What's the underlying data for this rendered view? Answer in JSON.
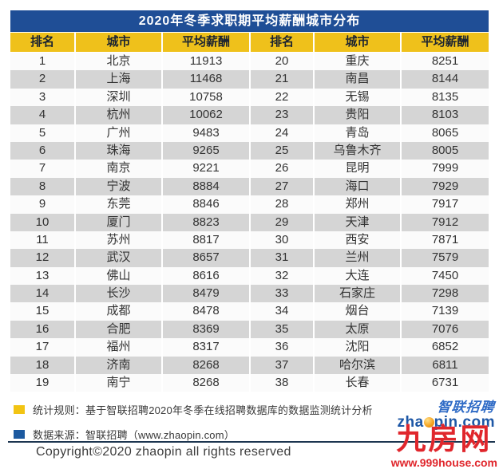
{
  "title": "2020年冬季求职期平均薪酬城市分布",
  "table": {
    "headers": [
      "排名",
      "城市",
      "平均薪酬",
      "排名",
      "城市",
      "平均薪酬"
    ],
    "rows": [
      {
        "rank": "1",
        "city": "北京",
        "salary": "11913",
        "rank2": "20",
        "city2": "重庆",
        "salary2": "8251"
      },
      {
        "rank": "2",
        "city": "上海",
        "salary": "11468",
        "rank2": "21",
        "city2": "南昌",
        "salary2": "8144"
      },
      {
        "rank": "3",
        "city": "深圳",
        "salary": "10758",
        "rank2": "22",
        "city2": "无锡",
        "salary2": "8135"
      },
      {
        "rank": "4",
        "city": "杭州",
        "salary": "10062",
        "rank2": "23",
        "city2": "贵阳",
        "salary2": "8103"
      },
      {
        "rank": "5",
        "city": "广州",
        "salary": "9483",
        "rank2": "24",
        "city2": "青岛",
        "salary2": "8065"
      },
      {
        "rank": "6",
        "city": "珠海",
        "salary": "9265",
        "rank2": "25",
        "city2": "乌鲁木齐",
        "salary2": "8005"
      },
      {
        "rank": "7",
        "city": "南京",
        "salary": "9221",
        "rank2": "26",
        "city2": "昆明",
        "salary2": "7999"
      },
      {
        "rank": "8",
        "city": "宁波",
        "salary": "8884",
        "rank2": "27",
        "city2": "海口",
        "salary2": "7929"
      },
      {
        "rank": "9",
        "city": "东莞",
        "salary": "8846",
        "rank2": "28",
        "city2": "郑州",
        "salary2": "7917"
      },
      {
        "rank": "10",
        "city": "厦门",
        "salary": "8823",
        "rank2": "29",
        "city2": "天津",
        "salary2": "7912"
      },
      {
        "rank": "11",
        "city": "苏州",
        "salary": "8817",
        "rank2": "30",
        "city2": "西安",
        "salary2": "7871"
      },
      {
        "rank": "12",
        "city": "武汉",
        "salary": "8657",
        "rank2": "31",
        "city2": "兰州",
        "salary2": "7579"
      },
      {
        "rank": "13",
        "city": "佛山",
        "salary": "8616",
        "rank2": "32",
        "city2": "大连",
        "salary2": "7450"
      },
      {
        "rank": "14",
        "city": "长沙",
        "salary": "8479",
        "rank2": "33",
        "city2": "石家庄",
        "salary2": "7298"
      },
      {
        "rank": "15",
        "city": "成都",
        "salary": "8478",
        "rank2": "34",
        "city2": "烟台",
        "salary2": "7139"
      },
      {
        "rank": "16",
        "city": "合肥",
        "salary": "8369",
        "rank2": "35",
        "city2": "太原",
        "salary2": "7076"
      },
      {
        "rank": "17",
        "city": "福州",
        "salary": "8317",
        "rank2": "36",
        "city2": "沈阳",
        "salary2": "6852"
      },
      {
        "rank": "18",
        "city": "济南",
        "salary": "8268",
        "rank2": "37",
        "city2": "哈尔滨",
        "salary2": "6811"
      },
      {
        "rank": "19",
        "city": "南宁",
        "salary": "8268",
        "rank2": "38",
        "city2": "长春",
        "salary2": "6731"
      }
    ]
  },
  "footer": {
    "legend": [
      {
        "color": "#F2C413",
        "text": "统计规则：基于智联招聘2020年冬季在线招聘数据库的数据监测统计分析"
      },
      {
        "color": "#1C5AA0",
        "text": "数据来源：智联招聘（www.zhaopin.com）"
      }
    ],
    "copyright": "Copyright©2020 zhaopin all rights reserved",
    "logo": {
      "brand": "智联招聘",
      "domain_pre": "zha",
      "domain_post": "pin.com"
    },
    "watermark": {
      "name": "九房网",
      "url": "www.999house.com"
    }
  },
  "colors": {
    "title_bar": "#1F4E96",
    "header_bg": "#EFC11B",
    "row_alt": "#D5D5D5",
    "legend_yellow": "#F2C413",
    "legend_blue": "#1C5AA0",
    "brand_blue": "#1D57A6",
    "watermark_red": "#E0262C"
  },
  "chart_data": {
    "type": "table",
    "title": "2020年冬季求职期平均薪酬城市分布",
    "columns": [
      "排名",
      "城市",
      "平均薪酬"
    ],
    "rows": [
      [
        1,
        "北京",
        11913
      ],
      [
        2,
        "上海",
        11468
      ],
      [
        3,
        "深圳",
        10758
      ],
      [
        4,
        "杭州",
        10062
      ],
      [
        5,
        "广州",
        9483
      ],
      [
        6,
        "珠海",
        9265
      ],
      [
        7,
        "南京",
        9221
      ],
      [
        8,
        "宁波",
        8884
      ],
      [
        9,
        "东莞",
        8846
      ],
      [
        10,
        "厦门",
        8823
      ],
      [
        11,
        "苏州",
        8817
      ],
      [
        12,
        "武汉",
        8657
      ],
      [
        13,
        "佛山",
        8616
      ],
      [
        14,
        "长沙",
        8479
      ],
      [
        15,
        "成都",
        8478
      ],
      [
        16,
        "合肥",
        8369
      ],
      [
        17,
        "福州",
        8317
      ],
      [
        18,
        "济南",
        8268
      ],
      [
        19,
        "南宁",
        8268
      ],
      [
        20,
        "重庆",
        8251
      ],
      [
        21,
        "南昌",
        8144
      ],
      [
        22,
        "无锡",
        8135
      ],
      [
        23,
        "贵阳",
        8103
      ],
      [
        24,
        "青岛",
        8065
      ],
      [
        25,
        "乌鲁木齐",
        8005
      ],
      [
        26,
        "昆明",
        7999
      ],
      [
        27,
        "海口",
        7929
      ],
      [
        28,
        "郑州",
        7917
      ],
      [
        29,
        "天津",
        7912
      ],
      [
        30,
        "西安",
        7871
      ],
      [
        31,
        "兰州",
        7579
      ],
      [
        32,
        "大连",
        7450
      ],
      [
        33,
        "石家庄",
        7298
      ],
      [
        34,
        "烟台",
        7139
      ],
      [
        35,
        "太原",
        7076
      ],
      [
        36,
        "沈阳",
        6852
      ],
      [
        37,
        "哈尔滨",
        6811
      ],
      [
        38,
        "长春",
        6731
      ]
    ]
  }
}
